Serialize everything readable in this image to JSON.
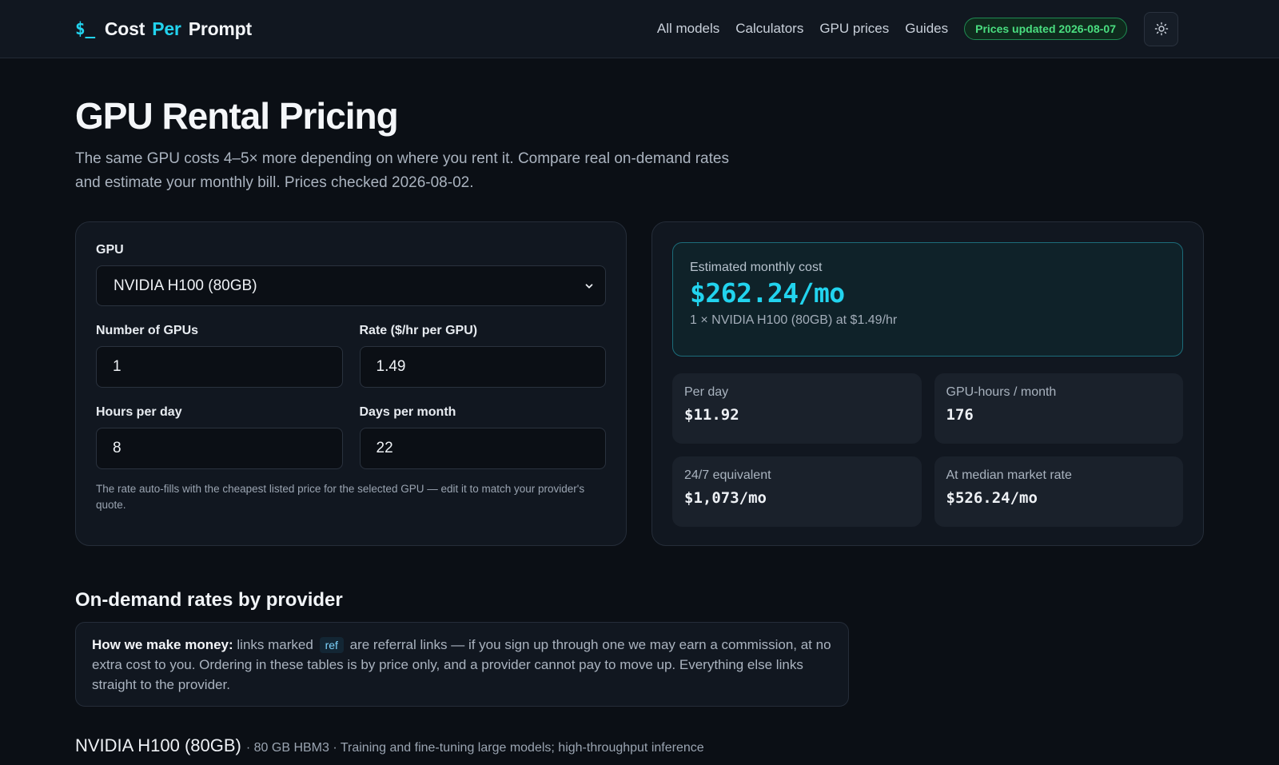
{
  "brand": {
    "prompt_symbol": "$_",
    "word1": "Cost",
    "word2": "Per",
    "word3": "Prompt"
  },
  "nav": {
    "items": [
      "All models",
      "Calculators",
      "GPU prices",
      "Guides"
    ],
    "badge": "Prices updated 2026-08-07",
    "theme_toggle_icon": "sun-icon"
  },
  "hero": {
    "title": "GPU Rental Pricing",
    "subtitle": "The same GPU costs 4–5× more depending on where you rent it. Compare real on-demand rates and estimate your monthly bill. Prices checked 2026-08-02."
  },
  "calculator": {
    "gpu_label": "GPU",
    "gpu_selected": "NVIDIA H100 (80GB)",
    "num_gpus_label": "Number of GPUs",
    "num_gpus_value": "1",
    "rate_label": "Rate ($/hr per GPU)",
    "rate_value": "1.49",
    "hours_label": "Hours per day",
    "hours_value": "8",
    "days_label": "Days per month",
    "days_value": "22",
    "help_text": "The rate auto-fills with the cheapest listed price for the selected GPU — edit it to match your provider's quote."
  },
  "results": {
    "monthly_label": "Estimated monthly cost",
    "monthly_value": "$262.24/mo",
    "monthly_sub": "1 × NVIDIA H100 (80GB) at $1.49/hr",
    "stats": [
      {
        "label": "Per day",
        "value": "$11.92"
      },
      {
        "label": "GPU-hours / month",
        "value": "176"
      },
      {
        "label": "24/7 equivalent",
        "value": "$1,073/mo"
      },
      {
        "label": "At median market rate",
        "value": "$526.24/mo"
      }
    ]
  },
  "providers": {
    "section_title": "On-demand rates by provider",
    "notice_bold": "How we make money:",
    "notice_pre": "links marked",
    "notice_tag": "ref",
    "notice_post": "are referral links — if you sign up through one we may earn a commission, at no extra cost to you. Ordering in these tables is by price only, and a provider cannot pay to move up. Everything else links straight to the provider.",
    "gpu_name": "NVIDIA H100 (80GB)",
    "gpu_meta": "· 80 GB HBM3 · Training and fine-tuning large models; high-throughput inference"
  },
  "colors": {
    "background": "#0b0f15",
    "accent": "#22d3ee",
    "badge_green": "#4ade80"
  }
}
